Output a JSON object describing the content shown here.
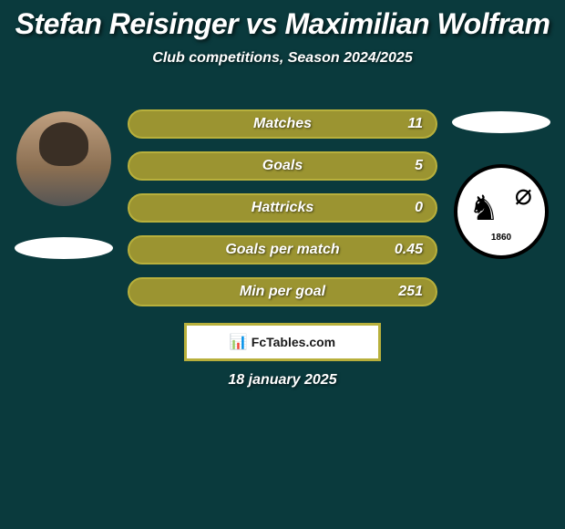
{
  "title": "Stefan Reisinger vs Maximilian Wolfram",
  "subtitle": "Club competitions, Season 2024/2025",
  "date": "18 january 2025",
  "brand": "FcTables.com",
  "club_year": "1860",
  "colors": {
    "background": "#0a3a3d",
    "bar_fill": "#9b9431",
    "bar_border": "#b8b03c",
    "text": "#ffffff"
  },
  "stats": [
    {
      "label": "Matches",
      "value": "11"
    },
    {
      "label": "Goals",
      "value": "5"
    },
    {
      "label": "Hattricks",
      "value": "0"
    },
    {
      "label": "Goals per match",
      "value": "0.45"
    },
    {
      "label": "Min per goal",
      "value": "251"
    }
  ]
}
